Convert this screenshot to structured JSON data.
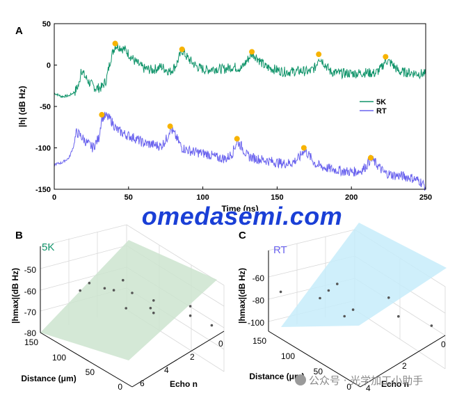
{
  "panel_labels": {
    "a": "A",
    "b": "B",
    "c": "C"
  },
  "watermark": "omedasemi.com",
  "wechat_caption": "公众号 · 光学加工小助手",
  "colors": {
    "series_5k": "#10946a",
    "series_rt": "#6a63ee",
    "peak_marker": "#f7b300",
    "plane_5k": "#cde4cf",
    "plane_rt": "#c7ecfa",
    "axis": "#000000",
    "grid": "#d8d8d8"
  },
  "chart_data": [
    {
      "panel": "A",
      "type": "line",
      "xlabel": "Time (ns)",
      "ylabel": "|h| (dB Hz)",
      "xlim": [
        0,
        250
      ],
      "ylim": [
        -150,
        50
      ],
      "xticks": [
        "0",
        "50",
        "100",
        "150",
        "200",
        "250"
      ],
      "yticks": [
        "50",
        "0",
        "-50",
        "-100",
        "-150"
      ],
      "legend": {
        "placement": "right",
        "entries": [
          "5K",
          "RT"
        ]
      },
      "grid": false,
      "series": [
        {
          "name": "5K",
          "points": [
            [
              0,
              -34
            ],
            [
              5,
              -38
            ],
            [
              10,
              -37
            ],
            [
              14,
              -32
            ],
            [
              17,
              -22
            ],
            [
              18,
              -4
            ],
            [
              20,
              -12
            ],
            [
              24,
              -22
            ],
            [
              28,
              -28
            ],
            [
              32,
              -27
            ],
            [
              35,
              -18
            ],
            [
              38,
              8
            ],
            [
              41,
              24
            ],
            [
              44,
              22
            ],
            [
              48,
              18
            ],
            [
              54,
              5
            ],
            [
              60,
              -4
            ],
            [
              66,
              -6
            ],
            [
              72,
              -2
            ],
            [
              78,
              -8
            ],
            [
              82,
              0
            ],
            [
              86,
              18
            ],
            [
              90,
              8
            ],
            [
              96,
              -2
            ],
            [
              102,
              -6
            ],
            [
              108,
              -4
            ],
            [
              114,
              -5
            ],
            [
              120,
              -2
            ],
            [
              126,
              -4
            ],
            [
              130,
              6
            ],
            [
              133,
              14
            ],
            [
              136,
              10
            ],
            [
              142,
              -2
            ],
            [
              148,
              -5
            ],
            [
              154,
              -8
            ],
            [
              160,
              -8
            ],
            [
              166,
              -7
            ],
            [
              172,
              -8
            ],
            [
              176,
              -2
            ],
            [
              178,
              10
            ],
            [
              181,
              4
            ],
            [
              186,
              -8
            ],
            [
              192,
              -10
            ],
            [
              198,
              -10
            ],
            [
              204,
              -10
            ],
            [
              210,
              -9
            ],
            [
              216,
              -10
            ],
            [
              220,
              -4
            ],
            [
              223,
              6
            ],
            [
              227,
              2
            ],
            [
              232,
              -8
            ],
            [
              238,
              -9
            ],
            [
              244,
              -10
            ],
            [
              250,
              -11
            ]
          ],
          "peaks": [
            [
              41,
              26
            ],
            [
              86,
              19
            ],
            [
              133,
              16
            ],
            [
              178,
              13
            ],
            [
              223,
              10
            ]
          ]
        },
        {
          "name": "RT",
          "points": [
            [
              0,
              -120
            ],
            [
              5,
              -118
            ],
            [
              10,
              -112
            ],
            [
              13,
              -98
            ],
            [
              15,
              -81
            ],
            [
              18,
              -86
            ],
            [
              22,
              -94
            ],
            [
              26,
              -100
            ],
            [
              30,
              -88
            ],
            [
              32,
              -63
            ],
            [
              35,
              -62
            ],
            [
              38,
              -66
            ],
            [
              42,
              -78
            ],
            [
              48,
              -84
            ],
            [
              54,
              -88
            ],
            [
              60,
              -94
            ],
            [
              66,
              -96
            ],
            [
              72,
              -98
            ],
            [
              76,
              -88
            ],
            [
              78,
              -76
            ],
            [
              81,
              -84
            ],
            [
              86,
              -100
            ],
            [
              92,
              -104
            ],
            [
              98,
              -106
            ],
            [
              104,
              -108
            ],
            [
              110,
              -112
            ],
            [
              116,
              -113
            ],
            [
              120,
              -106
            ],
            [
              123,
              -92
            ],
            [
              126,
              -98
            ],
            [
              130,
              -110
            ],
            [
              136,
              -113
            ],
            [
              142,
              -115
            ],
            [
              148,
              -117
            ],
            [
              154,
              -119
            ],
            [
              160,
              -118
            ],
            [
              165,
              -112
            ],
            [
              168,
              -102
            ],
            [
              171,
              -108
            ],
            [
              176,
              -120
            ],
            [
              182,
              -124
            ],
            [
              188,
              -126
            ],
            [
              194,
              -128
            ],
            [
              200,
              -129
            ],
            [
              206,
              -128
            ],
            [
              210,
              -122
            ],
            [
              213,
              -113
            ],
            [
              216,
              -118
            ],
            [
              222,
              -130
            ],
            [
              228,
              -133
            ],
            [
              234,
              -134
            ],
            [
              240,
              -136
            ],
            [
              246,
              -140
            ],
            [
              250,
              -147
            ]
          ],
          "peaks": [
            [
              32,
              -60
            ],
            [
              78,
              -74
            ],
            [
              123,
              -89
            ],
            [
              168,
              -100
            ],
            [
              213,
              -112
            ]
          ]
        }
      ]
    },
    {
      "panel": "B",
      "type": "scatter",
      "series_label": "5K",
      "zlabel": "|hmax|(dB Hz)",
      "xlabel": "Distance (μm)",
      "ylabel": "Echo n",
      "zticks": [
        "-50",
        "-60",
        "-70",
        "-80"
      ],
      "xticks": [
        "150",
        "100",
        "50",
        "0"
      ],
      "yticks": [
        "0",
        "2",
        "4",
        "6"
      ],
      "points": [
        {
          "distance": 110,
          "echo": 1,
          "h": -62
        },
        {
          "distance": 95,
          "echo": 1,
          "h": -56
        },
        {
          "distance": 80,
          "echo": 2,
          "h": -61
        },
        {
          "distance": 60,
          "echo": 2,
          "h": -66
        },
        {
          "distance": 40,
          "echo": 3,
          "h": -69
        },
        {
          "distance": 120,
          "echo": 3,
          "h": -71
        },
        {
          "distance": 100,
          "echo": 4,
          "h": -74
        },
        {
          "distance": 70,
          "echo": 4,
          "h": -76
        },
        {
          "distance": 30,
          "echo": 5,
          "h": -77
        },
        {
          "distance": 140,
          "echo": 5,
          "h": -79
        },
        {
          "distance": 90,
          "echo": 5,
          "h": -80
        },
        {
          "distance": 55,
          "echo": 6,
          "h": -81
        },
        {
          "distance": 20,
          "echo": 6,
          "h": -84
        }
      ]
    },
    {
      "panel": "C",
      "type": "scatter",
      "series_label": "RT",
      "zlabel": "|hmax|(dB Hz)",
      "xlabel": "Distance (μm)",
      "ylabel": "Echo n",
      "zticks": [
        "-60",
        "-80",
        "-100"
      ],
      "xticks": [
        "150",
        "100",
        "50",
        "0"
      ],
      "yticks": [
        "0",
        "2",
        "4"
      ],
      "points": [
        {
          "distance": 130,
          "echo": 0,
          "h": -58
        },
        {
          "distance": 100,
          "echo": 1,
          "h": -65
        },
        {
          "distance": 60,
          "echo": 1,
          "h": -68
        },
        {
          "distance": 120,
          "echo": 2,
          "h": -76
        },
        {
          "distance": 80,
          "echo": 2,
          "h": -80
        },
        {
          "distance": 40,
          "echo": 3,
          "h": -84
        },
        {
          "distance": 140,
          "echo": 3,
          "h": -88
        },
        {
          "distance": 90,
          "echo": 4,
          "h": -95
        },
        {
          "distance": 20,
          "echo": 4,
          "h": -97
        }
      ]
    }
  ]
}
